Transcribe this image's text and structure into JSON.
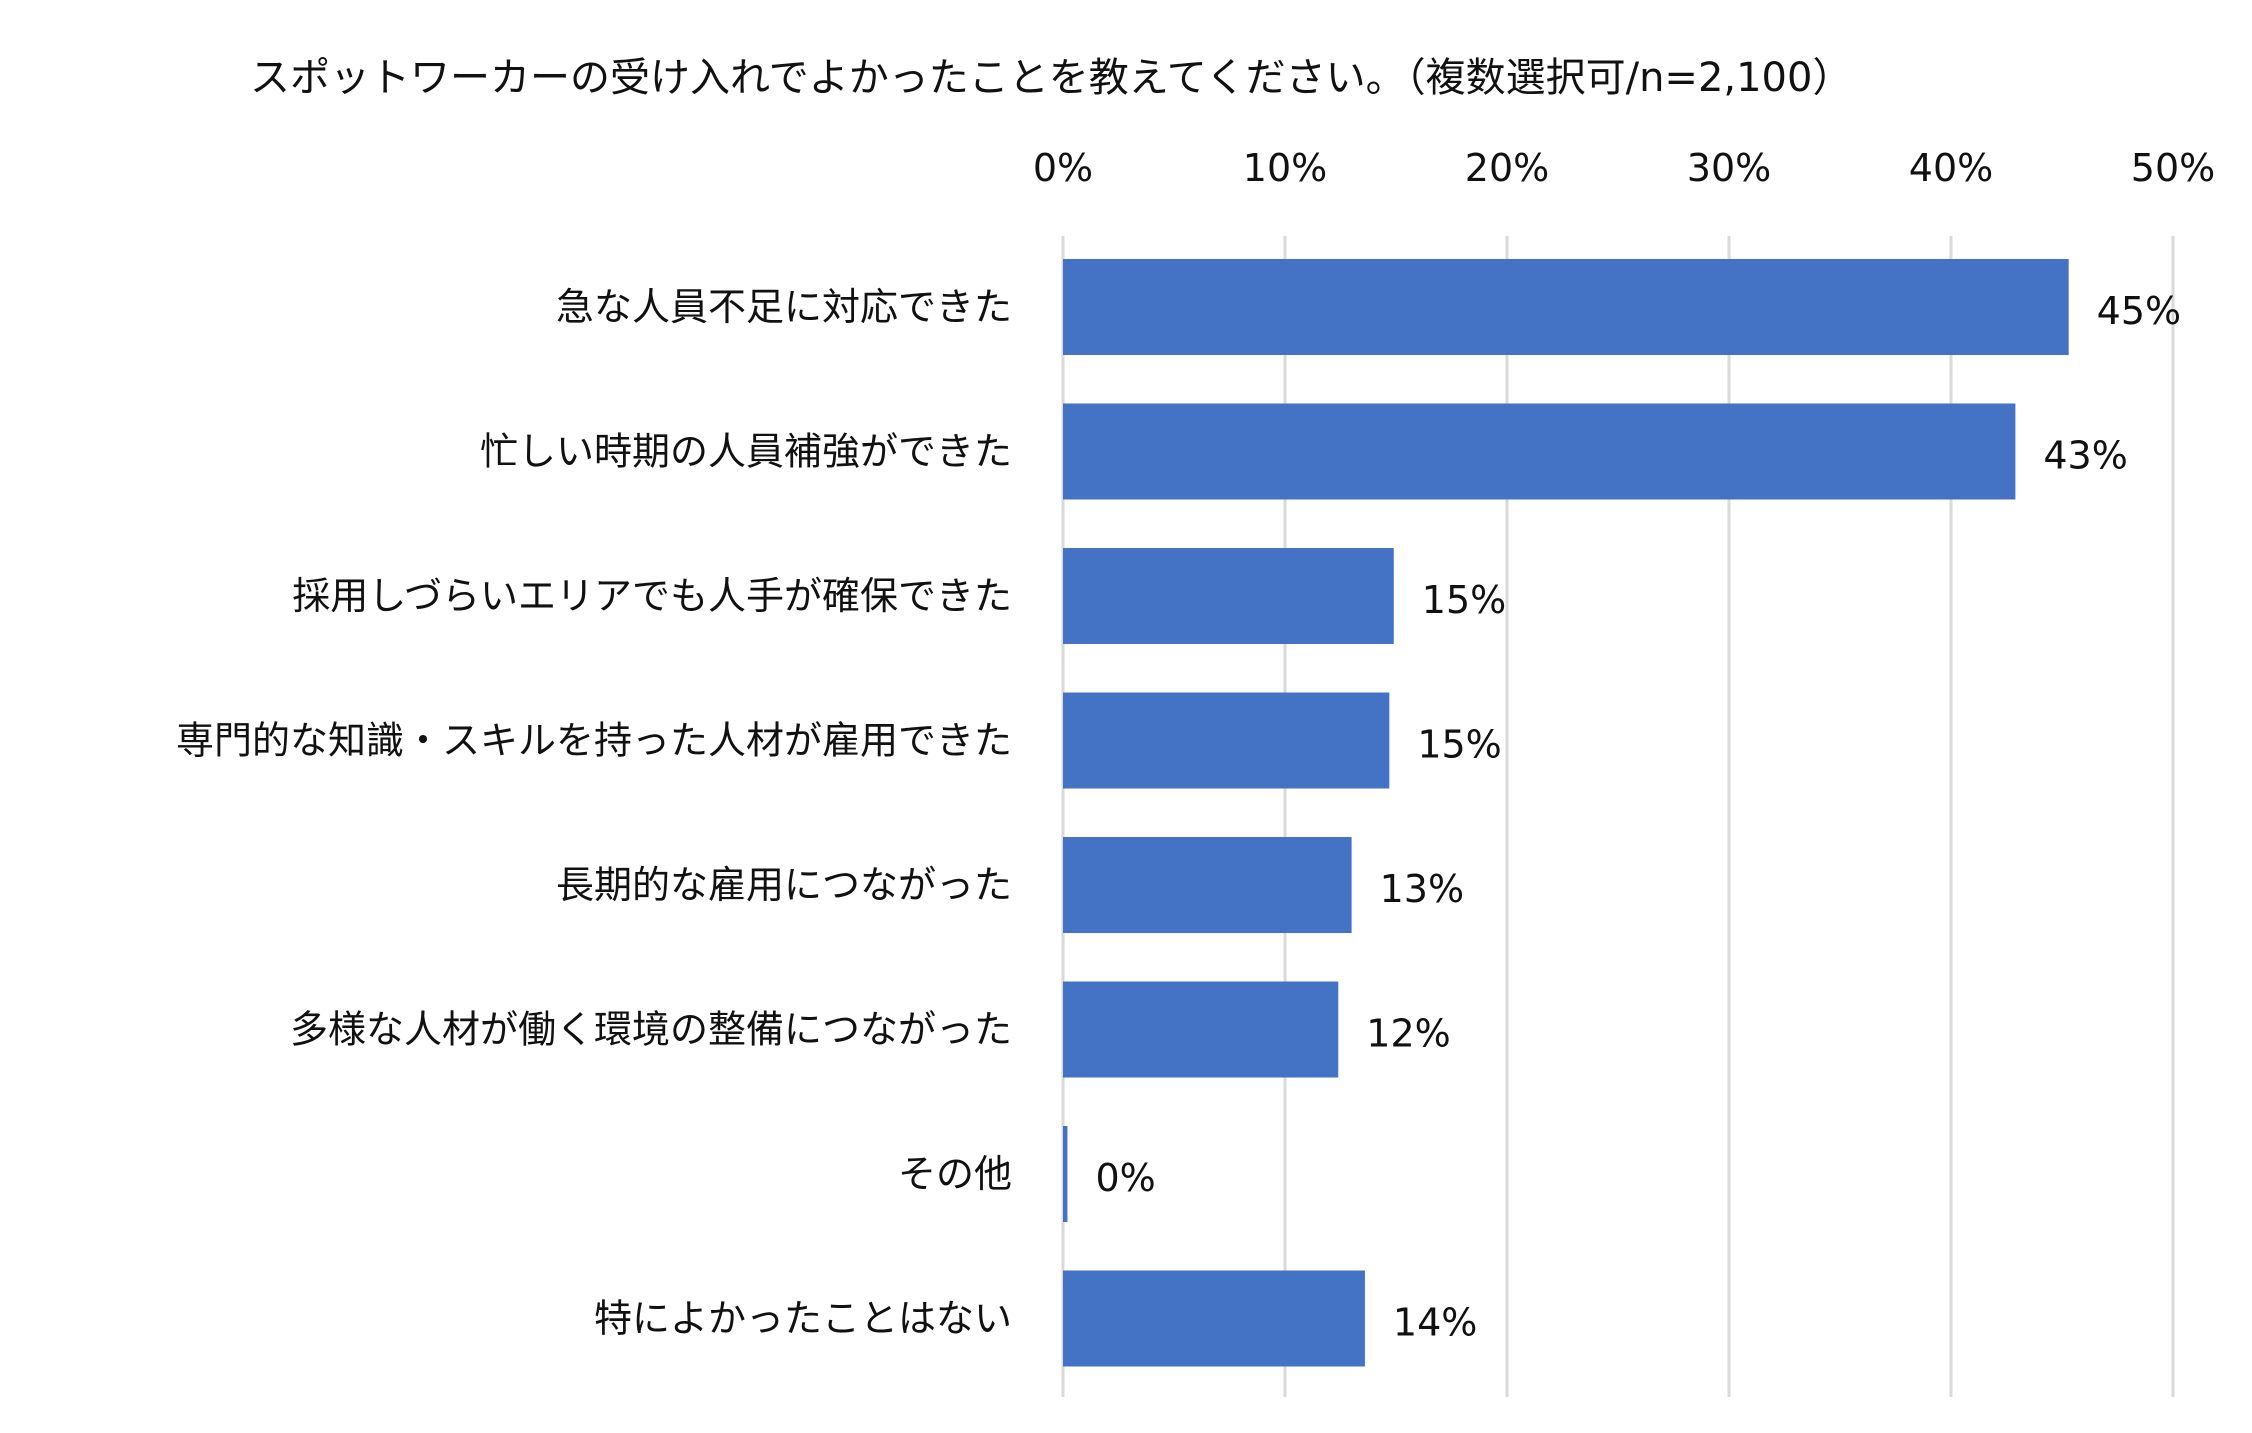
{
  "chart_data": {
    "type": "bar",
    "orientation": "horizontal",
    "title": "スポットワーカーの受け入れでよかったことを教えてください。（複数選択可/n=2,100）",
    "categories": [
      "急な人員不足に対応できた",
      "忙しい時期の人員補強ができた",
      "採用しづらいエリアでも人手が確保できた",
      "専門的な知識・スキルを持った人材が雇用できた",
      "長期的な雇用につながった",
      "多様な人材が働く環境の整備につながった",
      "その他",
      "特によかったことはない"
    ],
    "values": [
      45.3,
      42.9,
      14.9,
      14.7,
      13.0,
      12.4,
      0.2,
      13.6
    ],
    "value_labels": [
      "45%",
      "43%",
      "15%",
      "15%",
      "13%",
      "12%",
      "0%",
      "14%"
    ],
    "xlim": [
      0,
      50
    ],
    "xticks": [
      "0%",
      "10%",
      "20%",
      "30%",
      "40%",
      "50%"
    ],
    "xaxis_position": "top",
    "grid": true,
    "legend": "none",
    "bar_color": "#4472C4"
  }
}
